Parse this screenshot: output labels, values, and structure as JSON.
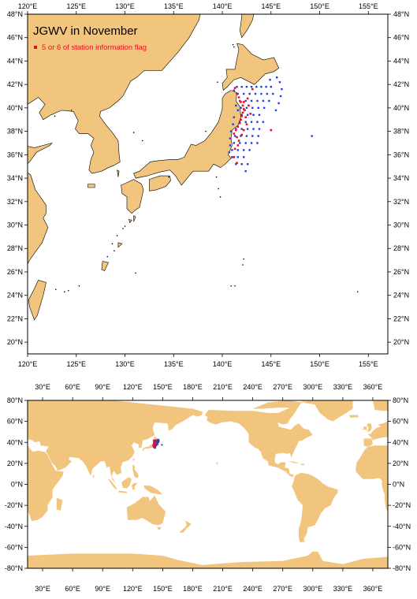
{
  "colors": {
    "land": "#f2c57f",
    "ocean": "#ffffff",
    "coast": "#000000",
    "station_blue": "#1f3fe0",
    "station_red": "#e8101a",
    "legend_red": "#e8101a"
  },
  "top_map": {
    "title": "JGWV in November",
    "legend_label": "5 or 6 of station information flag",
    "lon_range": [
      120,
      157
    ],
    "lat_range": [
      19,
      48
    ],
    "lon_ticks": [
      "120°E",
      "125°E",
      "130°E",
      "135°E",
      "140°E",
      "145°E",
      "150°E",
      "155°E"
    ],
    "lon_tick_values": [
      120,
      125,
      130,
      135,
      140,
      145,
      150,
      155
    ],
    "lat_ticks": [
      "20°N",
      "22°N",
      "24°N",
      "26°N",
      "28°N",
      "30°N",
      "32°N",
      "34°N",
      "36°N",
      "38°N",
      "40°N",
      "42°N",
      "44°N",
      "46°N",
      "48°N"
    ],
    "lat_tick_values": [
      20,
      22,
      24,
      26,
      28,
      30,
      32,
      34,
      36,
      38,
      40,
      42,
      44,
      46,
      48
    ]
  },
  "bottom_map": {
    "lon_range": [
      15,
      375
    ],
    "lat_range": [
      -80,
      80
    ],
    "lon_ticks": [
      "30°E",
      "60°E",
      "90°E",
      "120°E",
      "150°E",
      "180°E",
      "210°E",
      "240°E",
      "270°E",
      "300°E",
      "330°E",
      "360°E"
    ],
    "lon_tick_values": [
      30,
      60,
      90,
      120,
      150,
      180,
      210,
      240,
      270,
      300,
      330,
      360
    ],
    "lat_ticks": [
      "80°N",
      "60°N",
      "40°N",
      "20°N",
      "0°N",
      "-20°N",
      "-40°N",
      "-60°N",
      "-80°N"
    ],
    "lat_tick_values": [
      80,
      60,
      40,
      20,
      0,
      -20,
      -40,
      -60,
      -80
    ]
  },
  "stations": {
    "blue": [
      [
        141.2,
        41.5
      ],
      [
        141.5,
        41.8
      ],
      [
        142,
        41.8
      ],
      [
        142.5,
        41.8
      ],
      [
        143,
        41.8
      ],
      [
        143.5,
        41.8
      ],
      [
        144,
        41.8
      ],
      [
        144.5,
        41.8
      ],
      [
        145,
        41.8
      ],
      [
        141.6,
        41.2
      ],
      [
        142.2,
        41.2
      ],
      [
        142.8,
        41.2
      ],
      [
        143.4,
        41.2
      ],
      [
        144,
        41.2
      ],
      [
        144.6,
        41.2
      ],
      [
        145.2,
        41.2
      ],
      [
        141.8,
        40.6
      ],
      [
        142.4,
        40.6
      ],
      [
        143,
        40.6
      ],
      [
        143.6,
        40.6
      ],
      [
        144.2,
        40.6
      ],
      [
        144.8,
        40.6
      ],
      [
        141.9,
        40
      ],
      [
        142.5,
        40
      ],
      [
        143.1,
        40
      ],
      [
        143.7,
        40
      ],
      [
        144.3,
        40
      ],
      [
        142,
        39.4
      ],
      [
        142.6,
        39.4
      ],
      [
        143.2,
        39.4
      ],
      [
        143.8,
        39.4
      ],
      [
        141.8,
        38.8
      ],
      [
        142.4,
        38.8
      ],
      [
        143,
        38.8
      ],
      [
        143.6,
        38.8
      ],
      [
        144.2,
        38.8
      ],
      [
        141.4,
        38.2
      ],
      [
        142,
        38.2
      ],
      [
        142.6,
        38.2
      ],
      [
        143.2,
        38.2
      ],
      [
        143.8,
        38.2
      ],
      [
        141.3,
        37.6
      ],
      [
        141.9,
        37.6
      ],
      [
        142.5,
        37.6
      ],
      [
        143.1,
        37.6
      ],
      [
        143.7,
        37.6
      ],
      [
        141.2,
        37
      ],
      [
        141.8,
        37
      ],
      [
        142.4,
        37
      ],
      [
        143,
        37
      ],
      [
        143.6,
        37
      ],
      [
        141,
        36.4
      ],
      [
        141.6,
        36.4
      ],
      [
        142.2,
        36.4
      ],
      [
        142.8,
        36.4
      ],
      [
        141,
        35.8
      ],
      [
        141.6,
        35.8
      ],
      [
        142.2,
        35.8
      ],
      [
        141.4,
        35.2
      ],
      [
        142,
        35.2
      ],
      [
        142.6,
        35.2
      ],
      [
        142.4,
        34.6
      ],
      [
        145.6,
        42.6
      ],
      [
        145.9,
        42.2
      ],
      [
        146.1,
        41.6
      ],
      [
        146,
        41
      ],
      [
        145.8,
        40.4
      ],
      [
        145.5,
        39.8
      ],
      [
        144.9,
        42.4
      ],
      [
        149.2,
        37.6
      ],
      [
        141.4,
        40.2
      ],
      [
        141.6,
        39.8
      ],
      [
        141.2,
        39.2
      ],
      [
        141.1,
        38.6
      ],
      [
        140.9,
        38
      ],
      [
        140.8,
        37.4
      ],
      [
        140.8,
        36.8
      ],
      [
        140.7,
        36.2
      ]
    ],
    "red": [
      [
        141.3,
        41.7
      ],
      [
        141.5,
        41.2
      ],
      [
        141.7,
        40.9
      ],
      [
        141.9,
        40.5
      ],
      [
        142.1,
        40.2
      ],
      [
        142.2,
        39.9
      ],
      [
        142.1,
        39.6
      ],
      [
        142,
        39.3
      ],
      [
        141.9,
        39
      ],
      [
        141.8,
        38.7
      ],
      [
        141.6,
        38.4
      ],
      [
        141.4,
        38.1
      ],
      [
        141.2,
        37.8
      ],
      [
        141.5,
        37.5
      ],
      [
        141.7,
        37.2
      ],
      [
        142.3,
        39.8
      ],
      [
        142.4,
        39.2
      ],
      [
        142.5,
        38.6
      ],
      [
        142.6,
        40.8
      ],
      [
        142.7,
        40.2
      ],
      [
        142.2,
        38.1
      ],
      [
        143.1,
        41.6
      ],
      [
        141.6,
        36.8
      ],
      [
        141.3,
        36.5
      ],
      [
        141.2,
        35.8
      ],
      [
        141.5,
        35.3
      ],
      [
        142.2,
        40.5
      ],
      [
        142.9,
        39.5
      ],
      [
        145,
        38.1
      ],
      [
        142,
        37.7
      ]
    ]
  }
}
